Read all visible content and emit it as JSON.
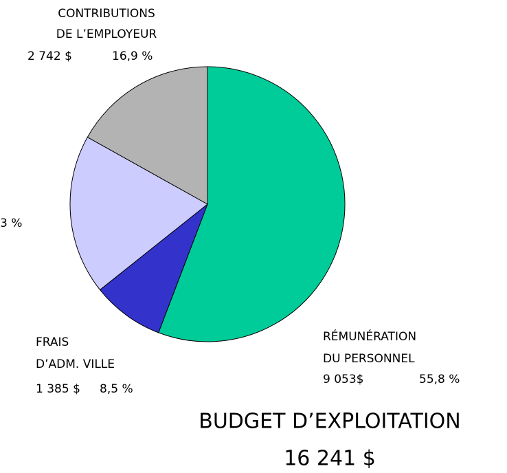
{
  "chart_data": {
    "type": "pie",
    "title": "BUDGET D’EXPLOITATION",
    "subtitle": "16 241 $",
    "labels": [
      [
        "RÉMUNÉRATION",
        "DU PERSONNEL"
      ],
      [
        "FRAIS",
        "D’ADM.  VILLE"
      ],
      null,
      [
        "CONTRIBUTIONS",
        "DE L’EMPLOYEUR"
      ]
    ],
    "amounts": [
      "9 053$",
      "1 385 $",
      null,
      "2 742 $"
    ],
    "values": [
      55.8,
      8.5,
      18.8,
      16.9
    ],
    "value_labels": [
      "55,8 %",
      "8,5 %",
      null,
      "16,9 %"
    ],
    "colors": [
      "#00cc99",
      "#3333cc",
      "#ccccff",
      "#b3b3b3"
    ],
    "annotations": [
      "3 %"
    ]
  }
}
